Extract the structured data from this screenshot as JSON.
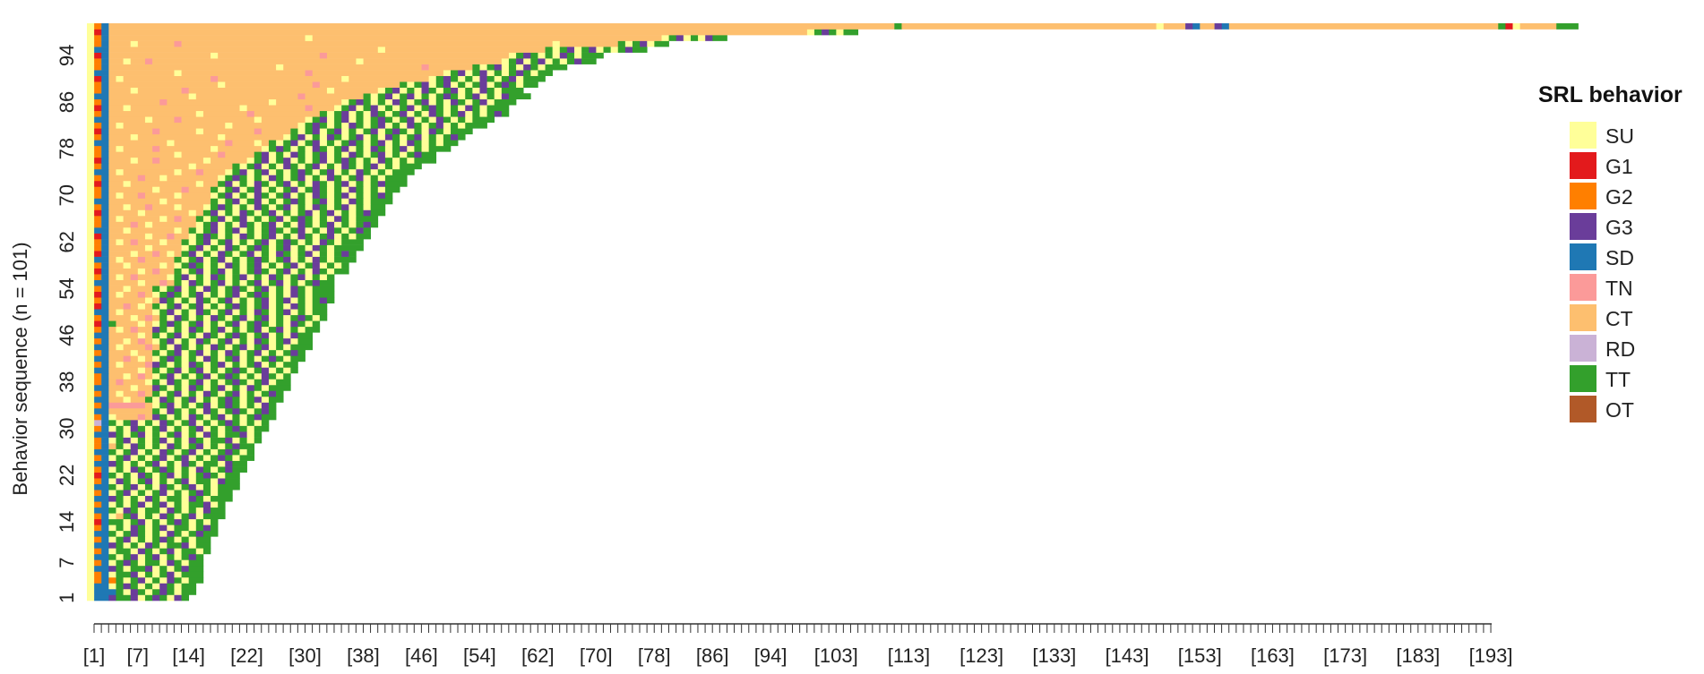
{
  "chart_data": {
    "type": "heatmap",
    "subtype": "sequence index plot",
    "title": "",
    "xlabel": "",
    "ylabel": "Behavior sequence (n = 101)",
    "n_sequences": 101,
    "max_length": 193,
    "x_tick_labels": [
      "[1]",
      "[7]",
      "[14]",
      "[22]",
      "[30]",
      "[38]",
      "[46]",
      "[54]",
      "[62]",
      "[70]",
      "[78]",
      "[86]",
      "[94]",
      "[103]",
      "[113]",
      "[123]",
      "[133]",
      "[143]",
      "[153]",
      "[163]",
      "[173]",
      "[183]",
      "[193]"
    ],
    "y_tick_labels": [
      "1",
      "7",
      "14",
      "22",
      "30",
      "38",
      "46",
      "54",
      "62",
      "70",
      "78",
      "86",
      "94"
    ],
    "legend_title": "SRL behavior",
    "legend_position": "right",
    "states": [
      {
        "code": "SU",
        "color": "#FFFF99"
      },
      {
        "code": "G1",
        "color": "#E31A1C"
      },
      {
        "code": "G2",
        "color": "#FF7F00"
      },
      {
        "code": "G3",
        "color": "#6A3D9A"
      },
      {
        "code": "SD",
        "color": "#1F78B4"
      },
      {
        "code": "TN",
        "color": "#FB9A99"
      },
      {
        "code": "CT",
        "color": "#FDBF6F"
      },
      {
        "code": "RD",
        "color": "#CAB2D6"
      },
      {
        "code": "TT",
        "color": "#33A02C"
      },
      {
        "code": "OT",
        "color": "#B15928"
      }
    ],
    "sequence_lengths": [
      14,
      15,
      15,
      16,
      16,
      16,
      16,
      16,
      17,
      17,
      17,
      18,
      18,
      18,
      19,
      19,
      19,
      20,
      20,
      21,
      21,
      21,
      22,
      22,
      23,
      23,
      23,
      24,
      24,
      25,
      25,
      26,
      26,
      26,
      27,
      27,
      28,
      28,
      28,
      29,
      29,
      30,
      30,
      31,
      31,
      31,
      32,
      32,
      33,
      33,
      33,
      34,
      34,
      34,
      35,
      35,
      36,
      36,
      37,
      37,
      38,
      38,
      39,
      39,
      40,
      40,
      40,
      41,
      41,
      42,
      42,
      43,
      43,
      44,
      44,
      45,
      46,
      46,
      47,
      47,
      48,
      49,
      50,
      50,
      51,
      52,
      53,
      55,
      56,
      58,
      60,
      62,
      64,
      66,
      69,
      72,
      75,
      79,
      85,
      105,
      193
    ],
    "sequence_rows_read_as": "row 1 is shortest (bottom), row 101 is longest (top)",
    "sequences": [
      "SU SD SD G3 TT TT G3 SU TT G3 TT SU G3 TT",
      "SU SD SD SD TT SU G3 TT SU TT G3 TT SU TT TT",
      "SU SD SD SU TT G3 TT SU TT SU G3 TT SU TT TT",
      "SU G2 SD G2 TT SU TT G3 SU TT SU G3 TT SU TT TT",
      "SU G2 SD SU TT TT G3 SU TT SU TT G3 SU TT TT TT",
      "SU SD SD G3 TT SU TT TT G3 SU TT SU TT G3 TT TT",
      "SU G2 SD SU TT G3 TT SU TT TT SU G3 TT SU TT TT",
      "SU SD SD TT SU TT G3 SU TT G3 SU TT SU TT G3 TT",
      "SU G2 SD SU TT TT SU G3 TT SU TT G3 SU TT TT SU TT",
      "SU SD SD G3 TT SU TT SU G3 TT SU TT TT G3 SU TT TT",
      "SU G2 SD SU TT G3 SU TT SU TT G3 TT SU TT SU TT TT",
      "SU SD SD TT SU TT G3 TT SU TT SU G3 TT SU TT G3 TT TT",
      "SU G2 SD SU TT SU G3 TT SU TT G3 SU TT TT SU TT G3 TT",
      "SU G1 SD TT TT SU TT G3 SU TT SU TT G3 TT SU TT SU TT",
      "SU G2 SD SU CT TT G3 SU TT SU G3 TT SU TT G3 SU TT TT TT",
      "SU SD SD TT SU G3 TT SU TT TT SU G3 TT SU TT SU G3 TT TT",
      "SU G2 SD SU TT SU TT G3 SU TT G3 SU TT SU TT TT G3 SU TT",
      "SU SD SD G3 TT SU TT SU G3 TT SU TT TT SU G3 TT SU TT TT TT",
      "SU G2 SD SU TT G3 SU TT SU TT G3 SU TT SU TT G3 TT SU TT TT",
      "SU SD SD TT SU TT G3 SU TT SU G3 TT SU TT G3 SU TT SU TT TT TT",
      "SU G2 SD SU G3 TT SU TT G3 SU TT SU TT G3 SU TT TT SU G3 TT TT",
      "SU G1 SD TT SU TT SU G3 TT SU TT G3 SU TT SU TT G3 TT SU TT TT",
      "SU G2 SD SU TT SU G3 TT SU TT G3 TT SU TT SU G3 TT SU TT G3 TT TT",
      "SU SD SD G3 TT SU TT SU TT G3 SU TT SU G3 TT SU TT TT SU G3 TT TT",
      "SU G2 SD SU TT G3 SU TT SU TT G3 SU TT G3 SU TT SU TT G3 TT SU TT TT",
      "SU SD SD TT SU TT G3 SU TT SU G3 TT SU TT G3 SU TT SU TT G3 TT SU TT",
      "SU G2 SD CT TT SU G3 TT SU TT SU G3 TT SU TT G3 SU TT SU TT G3 TT TT",
      "SU G2 SD SU TT G3 SU TT SU TT G3 SU TT SU G3 TT SU TT TT G3 SU TT SU TT",
      "SU SD SD G3 TT SU TT G3 SU TT SU TT G3 SU TT SU G3 TT SU TT TT G3 SU TT",
      "SU G2 SD SU TT SU G3 TT SU TT G3 SU TT SU TT G3 SU TT SU TT G3 TT SU TT TT",
      "SU RD SD TT SU TT G3 SU TT SU G3 TT SU TT G3 SU TT SU TT G3 TT SU TT SU TT",
      "SU G2 SD SU CT CT CT TN CT G3 TT SU TT SU G3 TT SU TT G3 SU TT SU TT G3 TT TT",
      "SU SD SD CT CT CT CT CT CT TT SU G3 TT SU TT SU G3 TT SU TT G3 TT SU TT G3 TT",
      "SU G2 SD TN TN TN TN TN CT SU TT G3 SU TT SU TT G3 SU TT G3 TT SU TT SU G3 TT",
      "SU SD SD CT CT SU CT CT TT SU G3 TT SU TT G3 SU TT SU TT G3 TT SU TT G3 SU TT TT",
      "SU G2 SD CT SU CT CT TN CT TT SU TT G3 SU TT SU G3 TT SU TT G3 SU TT SU TT G3 TT",
      "SU SD SD CT CT CT SU CT CT G3 TT SU TT SU G3 TT SU TT G3 SU TT SU G3 TT SU TT TT TT",
      "SU G2 SD CT TN CT CT CT SU TT SU G3 TT SU TT G3 SU TT SU TT G3 TT SU TT G3 SU TT TT",
      "SU G2 SD CT CT SU CT TN CT SU TT G3 SU TT SU TT G3 SU TT G3 TT SU TT SU G3 TT SU TT",
      "SU SD SD CT CT CT CT SU CT TT SU TT G3 SU TT G3 SU TT SU TT G3 TT SU TT G3 SU TT SU TT",
      "SU G2 SD CT SU CT CT CT TN G3 TT SU TT SU G3 TT SU TT G3 SU TT SU TT G3 SU TT SU TT TT",
      "SU SD SD CT CT TN CT SU CT SU TT G3 TT SU TT SU G3 TT SU TT G3 SU TT SU TT G3 TT SU TT TT",
      "SU G2 SD CT CT CT SU CT CT TT SU TT G3 SU TT G3 SU TT SU G3 TT SU TT G3 SU TT SU TT G3 TT",
      "SU SD SD CT SU CT CT CT TN CT TT SU G3 TT SU TT SU G3 TT SU TT G3 SU TT G3 SU TT SU TT TT TT",
      "SU G2 SD CT CT SU CT TN CT SU TT G3 SU TT SU G3 TT SU TT G3 SU TT SU G3 TT SU TT G3 SU TT TT",
      "SU SD SD CT CT CT CT SU CT TT SU TT G3 SU TT SU G3 TT SU TT G3 TT SU TT G3 SU TT SU G3 TT TT",
      "SU G2 SD CT SU CT TN CT CT G3 TT SU TT SU G3 TT SU TT G3 SU TT SU TT G3 SU TT G3 SU TT SU TT TT",
      "SU G1 SD TT CT CT CT SU CT SU TT G3 TT SU TT G3 SU TT SU TT G3 SU TT G3 TT SU TT SU G3 TT SU TT",
      "SU G2 SD CT CT CT SU CT TN CT TT SU G3 TT SU TT SU G3 TT SU TT G3 SU TT G3 SU TT SU TT G3 TT SU TT",
      "SU SD SD CT SU CT CT CT CT SU TT G3 SU TT SU G3 TT SU TT G3 SU TT SU G3 TT SU TT G3 SU TT SU TT TT",
      "SU G1 SD CT CT TN CT SU CT TT SU TT G3 SU TT G3 SU TT SU TT G3 TT SU TT G3 SU TT SU G3 TT SU TT TT",
      "SU G2 SD CT CT CT CT CT SU CT G3 TT SU TT SU G3 TT SU TT G3 SU TT SU TT G3 SU TT G3 SU TT SU TT G3 TT",
      "SU G1 SD CT SU CT CT TN CT SU TT G3 TT SU TT G3 SU TT SU TT G3 SU TT G3 TT SU TT SU G3 TT SU TT TT TT",
      "SU G2 SD CT CT SU CT CT CT TT SU TT G3 SU TT SU G3 TT SU TT G3 TT SU TT G3 SU TT SU G3 TT SU TT TT TT",
      "SU SD SD CT CT CT CT SU CT CT TN CT TT SU G3 TT SU TT G3 SU TT SU TT G3 SU TT G3 SU TT SU TT G3 TT TT",
      "SU G2 SD CT SU CT TN CT CT CT CT SU TT G3 SU TT SU G3 TT SU TT G3 SU TT SU G3 TT SU TT G3 SU TT SU TT",
      "SU G1 SD CT CT CT CT SU CT TN CT CT TT SU TT G3 SU TT G3 SU TT SU TT G3 TT SU TT G3 SU TT SU G3 TT SU TT TT",
      "SU G2 SD CT CT SU CT CT CT CT SU CT SU TT G3 TT SU TT SU G3 TT SU TT G3 SU TT SU TT G3 SU TT G3 SU TT SU TT",
      "SU SD SD CT SU CT CT TN CT CT CT CT TT SU TT G3 SU TT G3 SU TT SU TT G3 TT SU TT G3 SU TT SU G3 TT SU TT TT TT",
      "SU G1 SD CT CT CT SU CT CT TN CT SU CT TT G3 SU TT SU G3 TT SU TT G3 SU TT SU G3 TT SU TT G3 SU TT SU TT G3 TT",
      "SU G2 SD CT CT CT CT CT SU CT CT CT CT SU TT G3 SU TT SU G3 TT SU TT G3 TT SU TT G3 SU TT SU G3 TT SU TT TT TT TT",
      "SU G2 SD CT SU CT TN CT CT CT SU CT CT TT SU TT G3 SU TT G3 SU TT SU TT G3 SU TT G3 TT SU TT SU G3 TT SU TT TT TT",
      "SU G1 SD CT CT CT CT CT SU CT CT TN CT CT SU TT G3 TT SU TT SU G3 TT SU TT G3 SU TT SU G3 TT SU TT G3 SU TT SU TT TT",
      "SU SD SD CT CT SU CT CT CT CT CT CT SU CT TT SU TT G3 SU TT G3 SU TT SU TT G3 TT SU TT G3 SU TT SU G3 TT SU TT G3 TT",
      "SU G2 SD CT CT CT TN CT SU CT CT CT CT CT CT SU TT G3 SU TT SU G3 TT SU TT G3 SU TT SU G3 TT SU TT G3 SU TT SU TT G3 TT",
      "SU G2 SD CT SU CT CT CT CT CT SU CT TN CT CT TT SU TT G3 SU TT G3 SU TT SU TT G3 SU TT G3 TT SU TT SU G3 TT SU TT TT TT",
      "SU G1 SD CT CT CT CT SU CT CT CT CT CT CT SU CT TT G3 SU TT SU G3 TT SU TT G3 SU TT SU TT G3 SU TT G3 SU TT SU TT G3 TT TT",
      "SU G2 SD CT CT SU CT CT TN CT CT CT SU CT CT CT SU TT G3 TT SU TT SU G3 TT SU TT G3 SU TT SU G3 TT SU TT G3 SU TT SU TT TT",
      "SU SD SD CT CT CT CT CT CT CT SU CT CT CT CT CT CT TT SU TT G3 SU TT G3 SU TT SU TT G3 TT SU TT G3 SU TT SU G3 TT SU TT TT TT",
      "SU G2 SD CT SU CT CT TN CT CT CT CT SU CT CT CT CT SU TT G3 SU TT SU G3 TT SU TT G3 SU TT SU G3 TT SU TT G3 SU TT SU TT G3 TT",
      "SU G2 SD CT CT CT CT CT CT SU CT CT CT TN CT CT CT TT SU TT G3 SU TT G3 SU TT SU TT G3 SU TT G3 TT SU TT SU G3 TT SU TT SU TT TT",
      "SU G1 SD CT CT SU CT CT CT CT CT CT CT CT CT SU CT CT TT G3 SU TT SU G3 TT SU TT G3 SU TT SU G3 TT SU TT G3 SU TT SU TT G3 TT TT TT",
      "SU G2 SD CT CT CT CT TN CT CT SU CT CT CT CT CT CT CT SU TT G3 TT SU TT SU G3 TT SU TT G3 SU TT SU G3 TT SU TT G3 SU TT SU TT TT TT",
      "SU SD SD CT SU CT CT CT CT CT CT CT SU CT CT TN CT CT CT SU TT G3 SU TT G3 SU TT SU TT G3 TT SU TT G3 SU TT SU G3 TT SU TT SU TT TT TT",
      "SU G2 SD CT CT CT CT CT CT CT CT CT CT CT SU CT CT CT CT CT TT SU TT G3 SU TT SU G3 TT SU TT G3 SU TT SU G3 TT SU TT G3 SU TT SU TT TT TT",
      "SU G1 SD CT CT CT SU CT CT TN CT CT CT CT CT CT SU CT CT CT CT CT SU TT G3 SU TT G3 SU TT SU TT G3 SU TT G3 TT SU TT SU G3 TT SU TT SU TT TT TT",
      "SU G2 SD CT CT CT CT CT CT CT CT CT SU CT CT CT CT CT TN CT CT CT CT TT G3 SU TT SU G3 TT SU TT G3 SU TT SU G3 TT SU TT G3 SU TT SU TT G3 TT TT",
      "SU G2 SD CT SU CT CT CT CT TN CT CT CT CT CT CT CT SU CT CT CT CT CT CT SU TT G3 TT SU TT SU G3 TT SU TT G3 SU TT SU G3 TT SU TT G3 SU TT SU TT TT TT",
      "SU SD SD CT CT CT CT CT CT CT CT SU CT CT CT CT CT CT CT TN CT CT CT SU CT TT SU TT G3 SU TT G3 SU TT SU TT G3 TT SU TT G3 SU TT SU G3 TT SU TT SU TT TT",
      "SU G2 SD CT CT CT SU CT CT CT CT CT CT CT CT CT CT CT SU CT CT CT CT CT CT CT CT SU TT G3 SU TT SU G3 TT SU TT G3 SU TT SU G3 TT SU TT G3 SU TT SU TT G3 TT",
      "SU G1 SD CT CT CT CT CT CT TN CT CT CT CT CT SU CT CT CT CT CT CT CT TN CT CT CT CT TT SU TT G3 SU TT G3 SU TT SU TT G3 SU TT G3 TT SU TT SU G3 TT SU TT TT TT",
      "SU G2 SD CT SU CT CT CT CT CT CT CT CT CT CT CT CT CT CT SU CT CT CT CT CT CT CT CT CT SU TT G3 TT SU TT SU G3 TT SU TT G3 SU TT SU G3 TT SU TT G3 SU TT SU TT TT TT",
      "SU SD SD CT CT CT CT CT SU CT CT CT TN CT CT CT CT CT CT CT CT CT CT SU CT CT CT CT CT CT SU TT G3 SU TT G3 SU TT SU TT G3 TT SU TT G3 SU TT SU G3 TT SU TT SU TT TT TT",
      "SU G2 SD CT CT CT CT CT CT CT CT CT CT CT CT SU CT CT CT CT CT CT TN CT CT CT CT CT CT CT CT CT TT SU TT G3 SU TT SU G3 TT SU TT G3 SU TT SU G3 TT SU TT G3 SU TT SU TT G3 TT",
      "SU G1 SD CT CT SU CT CT CT CT CT CT CT CT CT CT CT CT CT CT CT SU CT CT CT CT CT CT CT CT TN CT CT CT SU TT G3 SU TT G3 SU TT SU TT G3 SU TT G3 TT SU TT SU G3 TT SU TT TT TT",
      "SU G2 SD CT CT CT CT CT CT CT TN CT CT CT CT CT CT CT CT CT CT CT CT CT CT SU CT CT CT CT CT CT CT CT CT SU TT G3 TT SU TT SU G3 TT SU TT G3 SU TT SU G3 TT SU TT G3 SU TT TT TT",
      "SU SD SD CT CT CT CT CT CT CT CT CT CT CT SU CT CT CT CT CT CT CT CT CT CT CT CT CT CT TN CT CT CT CT CT CT CT CT TT SU TT G3 SU TT G3 SU TT SU TT G3 TT SU TT G3 SU TT SU G3 TT TT TT",
      "SU G2 SD CT CT CT SU CT CT CT CT CT CT TN CT CT CT CT CT CT CT CT CT CT CT CT CT CT CT CT CT CT CT SU CT CT CT CT CT CT SU TT G3 SU TT SU G3 TT SU TT G3 SU TT SU G3 TT SU TT TT TT",
      "SU G2 SD CT CT CT CT CT CT CT CT CT CT CT CT CT CT CT SU CT CT CT CT CT CT CT CT CT CT CT CT TN CT CT CT CT CT CT CT CT CT CT CT TT SU TT G3 SU TT G3 SU TT SU TT G3 SU TT G3 TT SU TT TT",
      "SU G1 SD CT SU CT CT CT CT CT CT CT CT CT CT CT CT TN CT CT CT CT CT CT CT CT CT CT CT CT CT CT CT CT CT SU CT CT CT CT CT CT CT CT CT CT CT SU TT G3 TT SU TT SU G3 TT SU TT G3 SU TT TT TT",
      "SU SD SD CT CT CT CT CT CT CT CT CT SU CT CT CT CT CT CT CT CT CT CT CT CT CT CT CT CT CT TN CT CT CT CT CT CT CT CT CT CT CT CT CT CT CT CT CT CT SU TT G3 SU TT G3 SU TT SU TT G3 TT SU TT TT",
      "SU G2 SD CT CT CT CT CT CT CT CT CT CT CT CT CT CT CT CT CT CT CT CT CT CT CT SU CT CT CT CT CT CT CT CT CT CT CT CT CT CT CT CT CT CT CT TN CT CT CT CT CT CT TT SU TT G3 SU TT SU G3 TT SU TT TT TT",
      "SU G2 SD CT CT SU CT CT TN CT CT CT CT CT CT CT CT CT CT CT CT CT CT CT CT CT CT CT CT CT CT CT CT CT CT CT CT SU CT CT CT CT CT CT CT CT CT CT CT CT CT CT CT CT CT CT CT SU TT G3 SU TT G3 SU TT SU TT G3 TT TT",
      "SU G1 SD CT CT CT CT CT CT CT CT CT CT CT CT CT CT SU CT CT CT CT CT CT CT CT CT CT CT CT CT CT TN CT CT CT CT CT CT CT CT CT CT CT CT CT CT CT CT CT CT CT CT CT CT CT CT CT SU TT G3 TT SU TT SU G3 TT SU TT TT TT",
      "SU SD SD CT CT CT CT CT CT CT CT CT CT CT CT CT CT CT CT CT CT CT CT CT CT CT CT CT CT CT CT CT CT CT CT CT CT CT CT CT SU CT CT CT CT CT CT CT CT CT CT CT CT CT CT CT CT CT CT CT CT CT CT TT SU TT G3 SU TT G3 SU TT SU TT G3 TT TT",
      "SU G2 SD CT CT CT SU CT CT CT CT CT TN CT CT CT CT CT CT CT CT CT CT CT CT CT CT CT CT CT CT CT CT CT CT CT CT CT CT CT CT CT CT CT CT CT CT CT CT CT CT CT CT CT CT CT CT CT CT CT CT CT CT CT SU CT CT CT CT CT CT CT CT TT SU TT G3 SU TT TT",
      "SU G2 SD CT CT CT CT CT CT CT CT CT CT CT CT CT CT CT CT CT CT CT CT CT CT CT CT CT CT CT SU CT CT CT CT CT CT CT CT CT CT CT CT CT CT CT CT CT CT CT CT CT CT CT CT CT CT CT CT CT CT CT CT CT CT CT CT CT CT CT CT CT CT CT CT CT CT CT CT SU TT G3 SU TT SU G3 TT TT",
      "SU G1 SD CT CT CT CT CT CT CT CT CT CT CT CT CT CT CT CT CT CT CT CT CT CT CT CT CT CT CT CT CT CT CT CT CT CT CT CT CT CT CT CT CT CT CT CT CT CT CT CT CT CT CT CT CT CT CT CT CT CT CT CT CT CT CT CT CT CT CT CT CT CT CT CT CT CT CT CT CT CT CT CT CT CT CT CT CT CT CT CT CT CT CT CT CT CT CT CT SU TT G3 TT SU TT TT",
      "SU G2 SD CT CT CT CT CT CT CT CT CT CT CT CT CT CT CT CT CT CT CT CT CT CT CT CT CT CT CT CT CT CT CT CT CT CT CT CT CT CT CT CT CT CT CT CT CT CT CT CT CT CT CT CT CT CT CT CT CT CT CT CT CT CT CT CT CT CT CT CT CT CT CT CT CT CT CT CT CT CT CT CT CT CT CT CT CT CT CT CT CT CT CT CT CT CT CT CT CT CT CT CT CT CT CT CT CT CT CT CT TT CT CT CT CT CT CT CT CT CT CT CT CT CT CT CT CT CT CT CT CT CT CT CT CT CT CT CT CT CT CT CT CT CT CT CT SU CT CT CT G3 SD CT CT G3 SD CT CT CT CT CT CT CT CT CT CT CT CT CT CT CT CT CT CT CT CT CT CT CT CT CT CT CT CT CT CT CT CT CT CT CT CT CT TT G1 SU CT CT CT CT CT TT TT TT"
    ]
  }
}
